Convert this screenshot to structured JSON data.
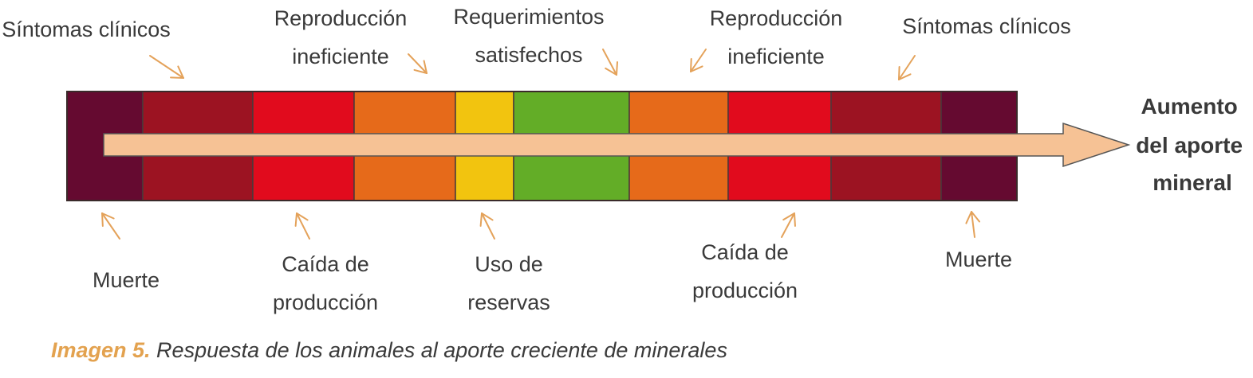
{
  "diagram": {
    "top_labels": [
      [
        "Síntomas clínicos"
      ],
      [
        "Reproducción",
        "ineficiente"
      ],
      [
        "Requerimientos",
        "satisfechos"
      ],
      [
        "Reproducción",
        "ineficiente"
      ],
      [
        "Síntomas clínicos"
      ]
    ],
    "bottom_labels": [
      [
        "Muerte"
      ],
      [
        "Caída de",
        "producción"
      ],
      [
        "Uso de",
        "reservas"
      ],
      [
        "Caída de",
        "producción"
      ],
      [
        "Muerte"
      ]
    ],
    "arrow_label": [
      "Aumento",
      "del aporte",
      "mineral"
    ],
    "segments": [
      {
        "color": "#650a30"
      },
      {
        "color": "#9c1322"
      },
      {
        "color": "#e10b1d"
      },
      {
        "color": "#e66a1a"
      },
      {
        "color": "#f2c40f"
      },
      {
        "color": "#63ad27"
      },
      {
        "color": "#e66a1a"
      },
      {
        "color": "#e10b1d"
      },
      {
        "color": "#9c1322"
      },
      {
        "color": "#650a30"
      }
    ],
    "arrow_color": "#f6c295",
    "pointer_color": "#e4a25a"
  },
  "caption": {
    "label": "Imagen 5.",
    "text": " Respuesta de los animales al aporte creciente de minerales"
  }
}
